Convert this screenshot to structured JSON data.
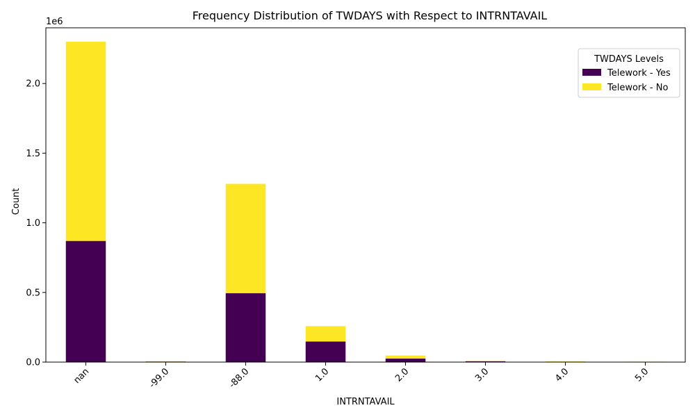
{
  "chart_data": {
    "type": "bar",
    "stacked": true,
    "title": "Frequency Distribution of TWDAYS with Respect to INTRNTAVAIL",
    "xlabel": "INTRNTAVAIL",
    "ylabel": "Count",
    "y_offset_label": "1e6",
    "ylim": [
      0,
      2400000
    ],
    "yticks": [
      0,
      500000,
      1000000,
      1500000,
      2000000
    ],
    "ytick_labels": [
      "0.0",
      "0.5",
      "1.0",
      "1.5",
      "2.0"
    ],
    "categories": [
      "nan",
      "-99.0",
      "-88.0",
      "1.0",
      "2.0",
      "3.0",
      "4.0",
      "5.0"
    ],
    "series": [
      {
        "name": "Telework - Yes",
        "color": "#440154",
        "values": [
          870000,
          4000,
          495000,
          148000,
          25000,
          5000,
          3000,
          2000
        ]
      },
      {
        "name": "Telework - No",
        "color": "#fde725",
        "values": [
          1430000,
          1000,
          785000,
          110000,
          22000,
          6000,
          2000,
          1000
        ]
      }
    ],
    "legend": {
      "title": "TWDAYS Levels",
      "position": "top-right"
    },
    "grid": false
  }
}
